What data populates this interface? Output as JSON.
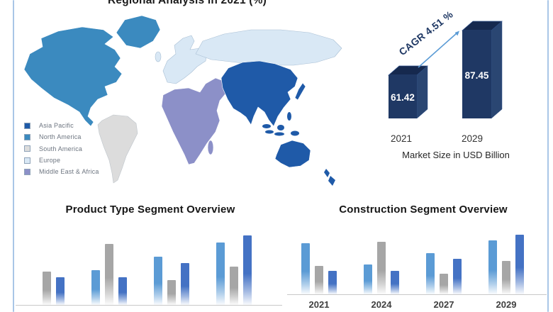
{
  "frame": {
    "border_color": "#a9c6e7"
  },
  "regional": {
    "title": "Regional Analysis in 2021 (%)",
    "legend": [
      {
        "label": "Asia Pacific",
        "color": "#1f5aa8"
      },
      {
        "label": "North America",
        "color": "#3b8abf"
      },
      {
        "label": "South America",
        "color": "#dcdcdc"
      },
      {
        "label": "Europe",
        "color": "#d9e8f5"
      },
      {
        "label": "Middle East & Africa",
        "color": "#8c90c8"
      }
    ]
  },
  "market_size": {
    "caption": "Market Size in USD Billion",
    "cagr_label": "CAGR 4.51 %",
    "bar_color": "#1f3864",
    "arrow_color": "#5b9bd5",
    "bars": [
      {
        "year": "2021",
        "value": "61.42"
      },
      {
        "year": "2029",
        "value": "87.45"
      }
    ]
  },
  "product_type": {
    "title": "Product Type Segment Overview"
  },
  "construction": {
    "title": "Construction Segment Overview"
  },
  "chart_data": [
    {
      "type": "bar",
      "style": "3d-column",
      "title": "Market Size in USD Billion",
      "categories": [
        "2021",
        "2029"
      ],
      "values": [
        61.42,
        87.45
      ],
      "annotation": "CAGR 4.51 %",
      "bar_color": "#1f3864"
    },
    {
      "type": "bar",
      "title": "Product Type Segment Overview",
      "categories": [
        "",
        "",
        "",
        ""
      ],
      "unit": "relative-bar-height-px",
      "colors": [
        "#5b9bd5",
        "#a6a6a6",
        "#4472c4"
      ],
      "series": [
        {
          "name": "light-blue",
          "values": [
            0,
            49,
            68,
            88
          ]
        },
        {
          "name": "gray",
          "values": [
            47,
            86,
            35,
            54
          ]
        },
        {
          "name": "blue",
          "values": [
            39,
            39,
            59,
            98
          ]
        }
      ],
      "legend_position": "none",
      "grid": false
    },
    {
      "type": "bar",
      "title": "Construction Segment Overview",
      "categories": [
        "2021",
        "2024",
        "2027",
        "2029"
      ],
      "unit": "relative-bar-height-px",
      "colors": [
        "#5b9bd5",
        "#a6a6a6",
        "#4472c4"
      ],
      "series": [
        {
          "name": "light-blue",
          "values": [
            72,
            42,
            58,
            76
          ]
        },
        {
          "name": "gray",
          "values": [
            40,
            74,
            29,
            47
          ]
        },
        {
          "name": "blue",
          "values": [
            33,
            33,
            50,
            84
          ]
        }
      ],
      "legend_position": "none",
      "grid": false
    }
  ]
}
